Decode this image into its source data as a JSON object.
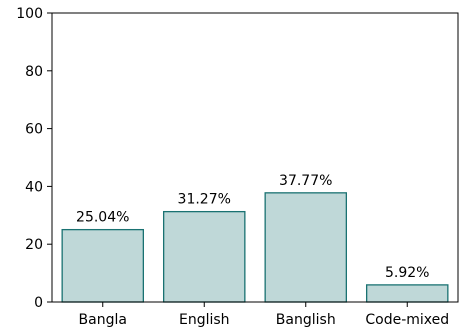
{
  "chart_data": {
    "type": "bar",
    "categories": [
      "Bangla",
      "English",
      "Banglish",
      "Code-mixed"
    ],
    "values": [
      25.04,
      31.27,
      37.77,
      5.92
    ],
    "value_labels": [
      "25.04%",
      "31.27%",
      "37.77%",
      "5.92%"
    ],
    "title": "",
    "xlabel": "",
    "ylabel": "",
    "ylim": [
      0,
      100
    ],
    "yticks": [
      0,
      20,
      40,
      60,
      80,
      100
    ],
    "grid": false,
    "bar_fill": "#bfd8d8",
    "bar_edge": "#1a7272"
  }
}
